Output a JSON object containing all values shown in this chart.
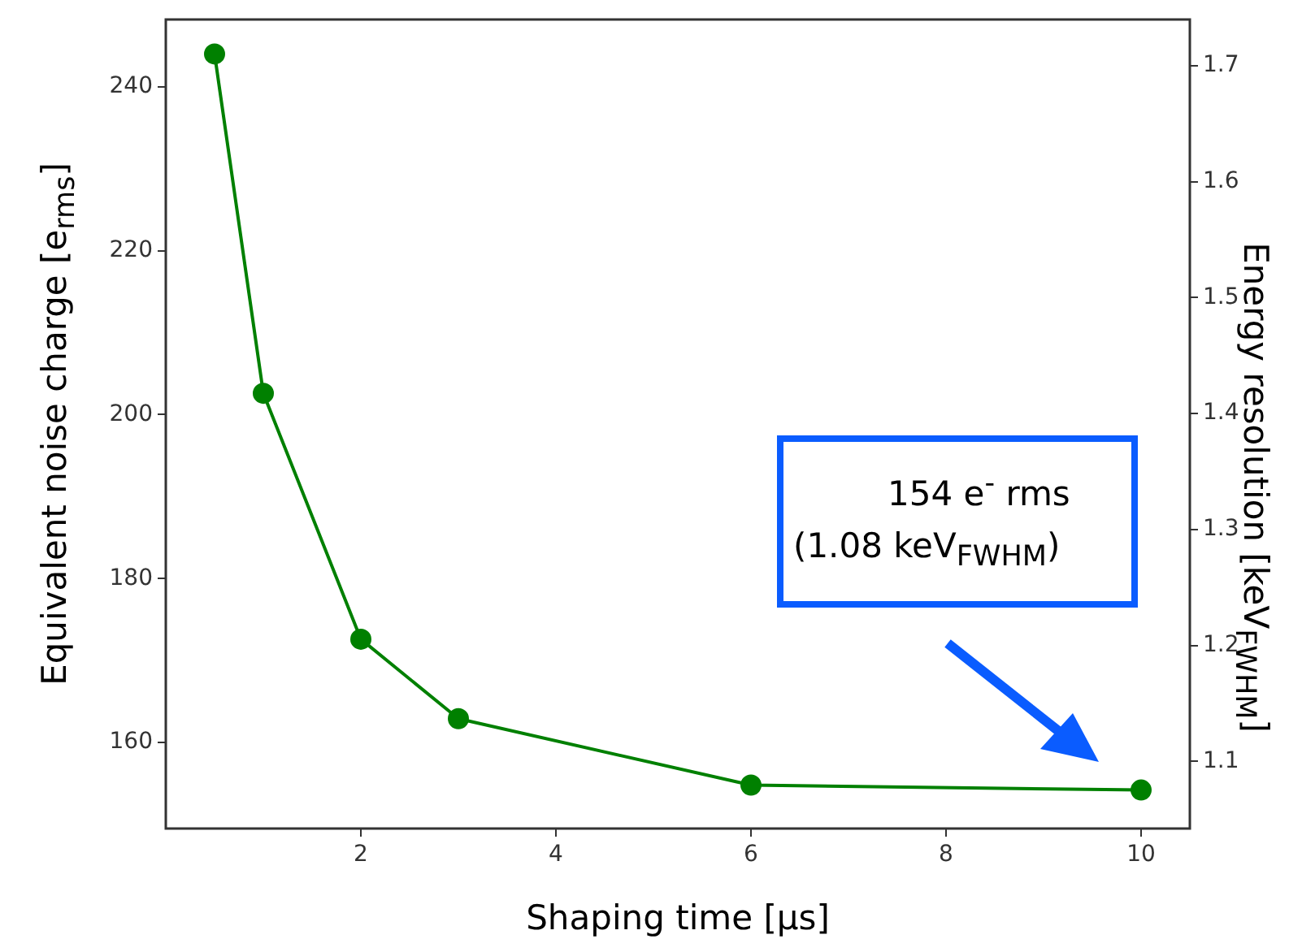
{
  "chart_data": {
    "type": "line",
    "xlabel": "Shaping time [µs]",
    "ylabel": "Equivalent noise charge [e$_{rms}$]",
    "y2label": "Energy resolution [keV$_{FWHM}$]",
    "x": [
      0.5,
      1,
      2,
      3,
      6,
      10
    ],
    "series": [
      {
        "color": "#008000",
        "values": [
          244,
          202.6,
          172.6,
          162.9,
          154.8,
          154.2
        ]
      }
    ],
    "xlim": [
      0,
      10.5
    ],
    "xticks": [
      2,
      4,
      6,
      8,
      10
    ],
    "ylim": [
      149.5,
      248.2
    ],
    "yticks": [
      160,
      180,
      200,
      220,
      240
    ],
    "y2lim": [
      1.042,
      1.74
    ],
    "y2ticks": [
      1.1,
      1.2,
      1.3,
      1.4,
      1.5,
      1.6,
      1.7
    ],
    "annotations": [
      "154 e$^{-}$ rms",
      "(1.08 keV$_{FWHM}$)"
    ],
    "grid": false,
    "legend": false,
    "marker": "circle",
    "line_style": "solid"
  }
}
